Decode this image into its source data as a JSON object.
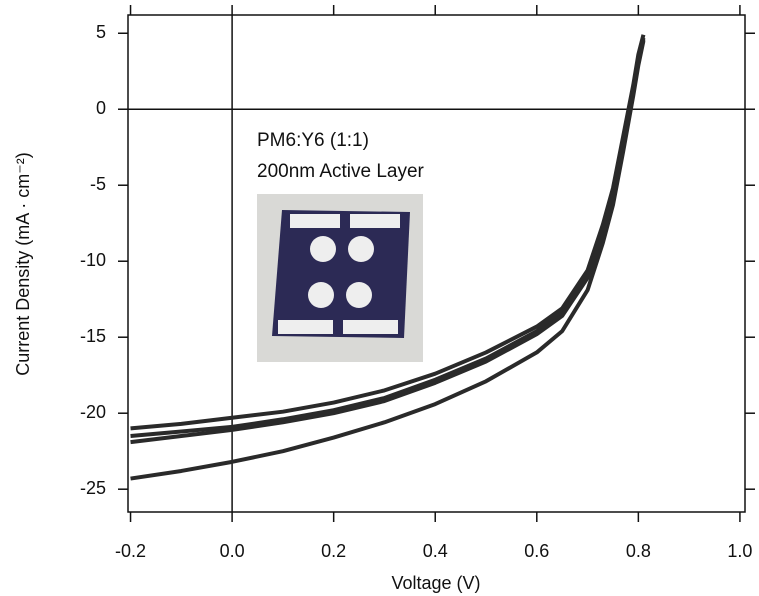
{
  "chart_data": {
    "type": "line",
    "x_label": "Voltage (V)",
    "y_label": "Current Density (mA · cm⁻²)",
    "annotations": [
      "PM6:Y6 (1:1)",
      "200nm Active Layer"
    ],
    "x": [
      -0.2,
      -0.1,
      0,
      0.1,
      0.2,
      0.3,
      0.4,
      0.5,
      0.6,
      0.65,
      0.7,
      0.73,
      0.75,
      0.77,
      0.79,
      0.8,
      0.81
    ],
    "series": [
      {
        "color": "#2a2a2a",
        "values": [
          -21.0,
          -20.7,
          -20.3,
          -19.9,
          -19.3,
          -18.5,
          -17.4,
          -16.0,
          -14.3,
          -13.1,
          -10.6,
          -7.6,
          -5.2,
          -1.8,
          1.6,
          3.6,
          4.9
        ]
      },
      {
        "color": "#2a2a2a",
        "values": [
          -21.5,
          -21.2,
          -20.9,
          -20.4,
          -19.8,
          -19.0,
          -17.8,
          -16.4,
          -14.6,
          -13.4,
          -10.9,
          -7.9,
          -5.5,
          -2.1,
          1.3,
          3.3,
          4.7
        ]
      },
      {
        "color": "#2a2a2a",
        "values": [
          -21.9,
          -21.5,
          -21.1,
          -20.6,
          -20.0,
          -19.2,
          -18.0,
          -16.6,
          -14.8,
          -13.6,
          -11.1,
          -8.1,
          -5.7,
          -2.3,
          1.1,
          3.1,
          4.6
        ]
      },
      {
        "color": "#2a2a2a",
        "values": [
          -24.3,
          -23.8,
          -23.2,
          -22.5,
          -21.6,
          -20.6,
          -19.4,
          -17.9,
          -16.0,
          -14.6,
          -11.9,
          -8.8,
          -6.3,
          -2.8,
          0.9,
          2.9,
          4.5
        ]
      }
    ],
    "xlim": [
      -0.205,
      1.01
    ],
    "ylim": [
      -26.5,
      6.2
    ],
    "xticks": [
      -0.2,
      {
        "value": 0,
        "label": "0.0"
      },
      0.2,
      0.4,
      0.6,
      0.8,
      {
        "value": 1,
        "label": "1.0"
      }
    ],
    "yticks": [
      5,
      0,
      -5,
      -10,
      -15,
      -20,
      -25
    ],
    "zero_lines": true
  }
}
